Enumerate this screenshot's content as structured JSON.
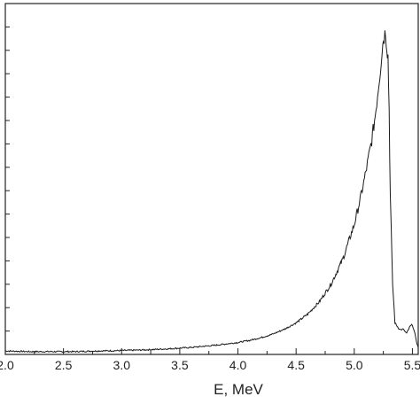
{
  "chart_data": {
    "type": "line",
    "title": "",
    "xlabel": "E, MeV",
    "ylabel": "",
    "xlim": [
      2.0,
      5.55
    ],
    "ylim": [
      0,
      1.0
    ],
    "grid": false,
    "legend": "none",
    "x_ticks": [
      "2.0",
      "2.5",
      "3.0",
      "3.5",
      "4.0",
      "4.5",
      "5.0",
      "5.5"
    ],
    "line_color": "#1a1a1a",
    "series": [
      {
        "x": [
          2.0,
          2.2,
          2.4,
          2.6,
          2.8,
          3.0,
          3.2,
          3.4,
          3.6,
          3.8,
          4.0,
          4.1,
          4.2,
          4.3,
          4.4,
          4.5,
          4.6,
          4.7,
          4.8,
          4.9,
          5.0,
          5.05,
          5.1,
          5.15,
          5.18,
          5.2,
          5.22,
          5.24,
          5.25,
          5.27,
          5.28,
          5.29,
          5.3,
          5.31,
          5.33,
          5.35,
          5.38,
          5.4,
          5.42,
          5.45,
          5.48,
          5.5,
          5.52,
          5.54,
          5.55
        ],
        "y": [
          0.01,
          0.008,
          0.008,
          0.008,
          0.01,
          0.011,
          0.013,
          0.016,
          0.02,
          0.026,
          0.034,
          0.04,
          0.048,
          0.058,
          0.072,
          0.09,
          0.115,
          0.15,
          0.2,
          0.27,
          0.37,
          0.44,
          0.52,
          0.61,
          0.68,
          0.74,
          0.8,
          0.87,
          0.9,
          0.92,
          0.88,
          0.85,
          0.7,
          0.45,
          0.2,
          0.09,
          0.075,
          0.07,
          0.072,
          0.06,
          0.08,
          0.085,
          0.06,
          0.03,
          0.02
        ]
      }
    ]
  }
}
